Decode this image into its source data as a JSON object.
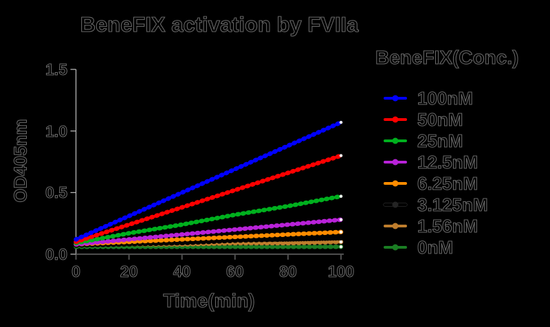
{
  "title": "BeneFIX activation by FVIIa",
  "axes": {
    "x_label": "Time(min)",
    "y_label": "OD405nm"
  },
  "legend": {
    "title": "BeneFIX(Conc.)"
  },
  "colors": {
    "background": "#000000",
    "text": "#000000",
    "axis_x": "#4f4f4f",
    "axis_y": "#b5b5b5",
    "line_end_cap": "#ffffff"
  },
  "chart_data": {
    "type": "line",
    "title": "BeneFIX activation by FVIIa",
    "xlabel": "Time(min)",
    "ylabel": "OD405nm",
    "xlim": [
      0,
      100
    ],
    "ylim": [
      0,
      1.5
    ],
    "x_ticks": [
      "0",
      "20",
      "40",
      "60",
      "80",
      "100"
    ],
    "y_ticks": [
      "0.0",
      "0.5",
      "1.0",
      "1.5"
    ],
    "grid": false,
    "legend_position": "right",
    "legend_title": "BeneFIX(Conc.)",
    "x": [
      0,
      20,
      40,
      60,
      80,
      100
    ],
    "series": [
      {
        "name": "100nM",
        "color": "#0000ff",
        "values": [
          0.12,
          0.31,
          0.5,
          0.69,
          0.88,
          1.07
        ]
      },
      {
        "name": "50nM",
        "color": "#ff0000",
        "values": [
          0.1,
          0.24,
          0.38,
          0.52,
          0.66,
          0.8
        ]
      },
      {
        "name": "25nM",
        "color": "#00b01e",
        "values": [
          0.09,
          0.17,
          0.24,
          0.32,
          0.39,
          0.47
        ]
      },
      {
        "name": "12.5nM",
        "color": "#b822d8",
        "values": [
          0.08,
          0.12,
          0.16,
          0.2,
          0.24,
          0.28
        ]
      },
      {
        "name": "6.25nM",
        "color": "#ff8c00",
        "values": [
          0.08,
          0.1,
          0.12,
          0.14,
          0.16,
          0.18
        ]
      },
      {
        "name": "3.125nM",
        "color": "#000000",
        "values": [
          0.07,
          0.08,
          0.09,
          0.11,
          0.12,
          0.13
        ]
      },
      {
        "name": "1.56nM",
        "color": "#be7d2d",
        "values": [
          0.07,
          0.08,
          0.08,
          0.09,
          0.09,
          0.1
        ]
      },
      {
        "name": "0nM",
        "color": "#1a7d23",
        "values": [
          0.06,
          0.06,
          0.06,
          0.06,
          0.06,
          0.06
        ]
      }
    ]
  }
}
